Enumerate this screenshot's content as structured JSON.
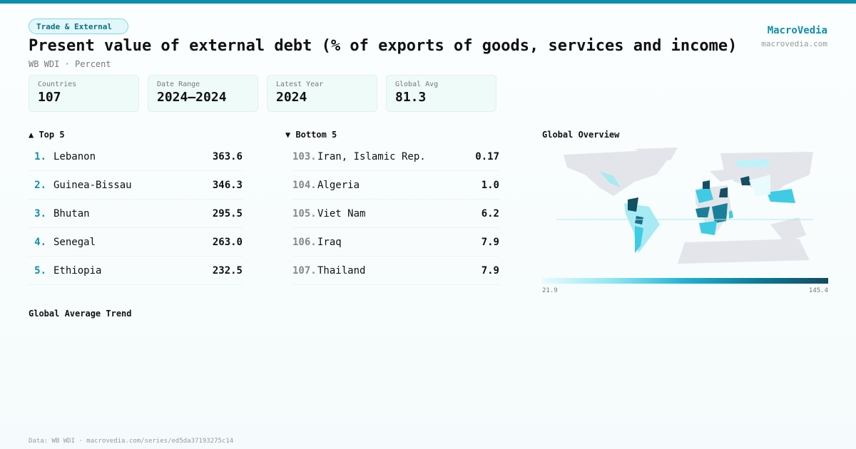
{
  "category": "Trade & External",
  "title": "Present value of external debt (% of exports of goods, services and income)",
  "subtitle": "WB WDI · Percent",
  "brand": {
    "name": "MacroVedia",
    "url": "macrovedia.com"
  },
  "stats": [
    {
      "label": "Countries",
      "value": "107"
    },
    {
      "label": "Date Range",
      "value": "2024–2024"
    },
    {
      "label": "Latest Year",
      "value": "2024"
    },
    {
      "label": "Global Avg",
      "value": "81.3"
    }
  ],
  "top": {
    "title": "▲ Top 5",
    "items": [
      {
        "rank": "1.",
        "name": "Lebanon",
        "value": "363.6"
      },
      {
        "rank": "2.",
        "name": "Guinea-Bissau",
        "value": "346.3"
      },
      {
        "rank": "3.",
        "name": "Bhutan",
        "value": "295.5"
      },
      {
        "rank": "4.",
        "name": "Senegal",
        "value": "263.0"
      },
      {
        "rank": "5.",
        "name": "Ethiopia",
        "value": "232.5"
      }
    ]
  },
  "bottom": {
    "title": "▼ Bottom 5",
    "items": [
      {
        "rank": "103.",
        "name": "Iran, Islamic Rep.",
        "value": "0.17"
      },
      {
        "rank": "104.",
        "name": "Algeria",
        "value": "1.0"
      },
      {
        "rank": "105.",
        "name": "Viet Nam",
        "value": "6.2"
      },
      {
        "rank": "106.",
        "name": "Iraq",
        "value": "7.9"
      },
      {
        "rank": "107.",
        "name": "Thailand",
        "value": "7.9"
      }
    ]
  },
  "map": {
    "title": "Global Overview",
    "legend_min": "21.9",
    "legend_max": "145.4",
    "colors": {
      "none": "#e4e5ea",
      "low": "#bff2f8",
      "mid": "#3fcbe3",
      "high": "#134f63"
    }
  },
  "trend": {
    "title": "Global Average Trend"
  },
  "footer": "Data: WB WDI · macrovedia.com/series/ed5da37193275c14"
}
